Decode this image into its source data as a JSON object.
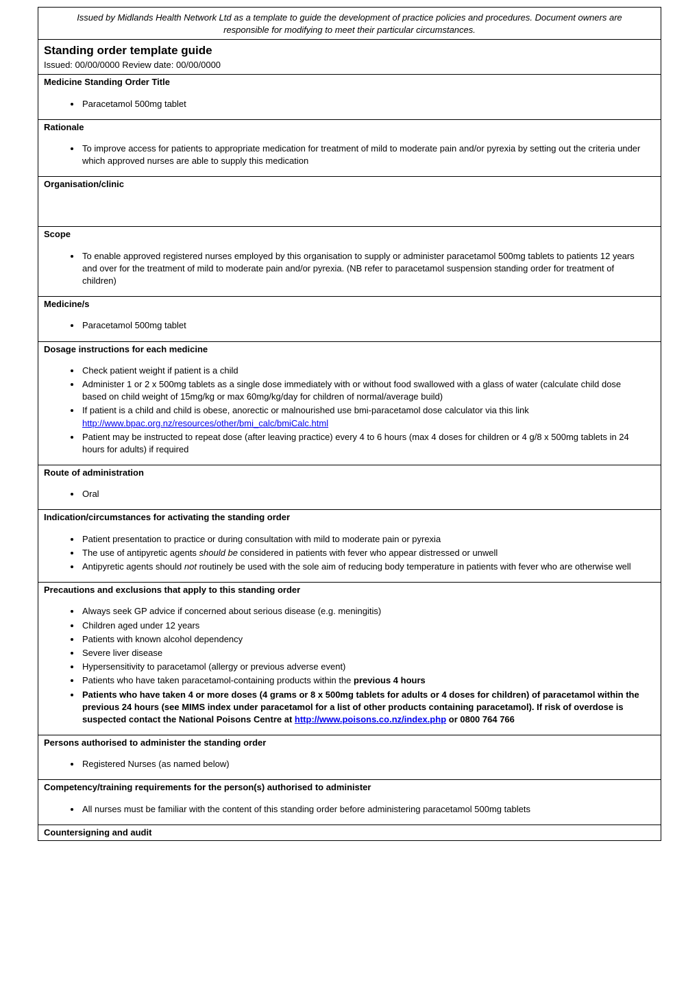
{
  "disclaimer": "Issued by Midlands Health Network Ltd as a template to guide the development of practice policies and procedures.  Document owners are responsible for modifying to meet their particular circumstances.",
  "title": "Standing order template guide",
  "issued": "Issued: 00/00/0000 Review date: 00/00/0000",
  "sections": {
    "medicine_title": {
      "header": "Medicine Standing Order Title",
      "items": [
        "Paracetamol 500mg tablet"
      ]
    },
    "rationale": {
      "header": "Rationale",
      "items": [
        "To improve access for patients to appropriate medication for treatment of mild to moderate pain and/or pyrexia by setting out the criteria under which approved nurses are able to supply this medication"
      ]
    },
    "org": {
      "header": "Organisation/clinic"
    },
    "scope": {
      "header": "Scope",
      "items": [
        "To enable approved registered nurses employed by this organisation to supply or administer paracetamol 500mg tablets to patients 12 years and over for the treatment of mild to moderate pain and/or pyrexia.  (NB refer to paracetamol suspension standing order for treatment of children)"
      ]
    },
    "medicines": {
      "header": "Medicine/s",
      "items": [
        "Paracetamol 500mg tablet"
      ]
    },
    "dosage": {
      "header": "Dosage instructions for each medicine",
      "item1": "Check patient weight if patient is a child",
      "item2": "Administer 1 or 2 x 500mg tablets as a single dose immediately with or without food swallowed with a glass of water (calculate child dose based on child weight of 15mg/kg or max 60mg/kg/day for children of normal/average build)",
      "item3a": "If patient is a child and child is obese, anorectic or malnourished use bmi-paracetamol dose calculator via this link",
      "item3_link": "http://www.bpac.org.nz/resources/other/bmi_calc/bmiCalc.html",
      "item4": "Patient may be instructed to repeat dose (after leaving practice) every 4 to 6 hours (max 4 doses for children or 4 g/8 x 500mg tablets in 24 hours for adults) if required"
    },
    "route": {
      "header": "Route of administration",
      "items": [
        "Oral"
      ]
    },
    "indication": {
      "header": "Indication/circumstances for activating the standing order",
      "item1": "Patient presentation to practice or during consultation with mild to moderate pain or pyrexia",
      "item2a": "The use of antipyretic agents ",
      "item2b": "should be",
      "item2c": " considered in patients with fever who appear distressed or unwell",
      "item3a": "Antipyretic agents should ",
      "item3b": "not",
      "item3c": " routinely be used with the sole aim of reducing body temperature in patients with fever who are otherwise well"
    },
    "precautions": {
      "header": "Precautions and exclusions that apply to this standing order",
      "item1": "Always seek GP advice if concerned about serious disease (e.g. meningitis)",
      "item2": "Children aged under 12 years",
      "item3": "Patients with known alcohol dependency",
      "item4": "Severe liver disease",
      "item5": "Hypersensitivity to paracetamol (allergy or previous adverse event)",
      "item6a": "Patients who have taken paracetamol-containing products within the ",
      "item6b": "previous 4 hours",
      "item7a": "Patients who have taken 4 or more doses (4 grams or 8 x 500mg tablets for adults or 4 doses for children) of paracetamol within the previous 24 hours (see MIMS index under paracetamol for a list of other products containing paracetamol).  If risk of overdose is suspected contact the National Poisons Centre at ",
      "item7_link": "http://www.poisons.co.nz/index.php",
      "item7b": " or 0800 764 766"
    },
    "persons": {
      "header": "Persons authorised to administer the standing order",
      "items": [
        "Registered Nurses (as named below)"
      ]
    },
    "competency": {
      "header": "Competency/training requirements for the person(s) authorised to administer",
      "items": [
        "All nurses must be familiar with the content of this standing order before administering paracetamol 500mg tablets"
      ]
    },
    "counter": {
      "header": "Countersigning and audit"
    }
  }
}
